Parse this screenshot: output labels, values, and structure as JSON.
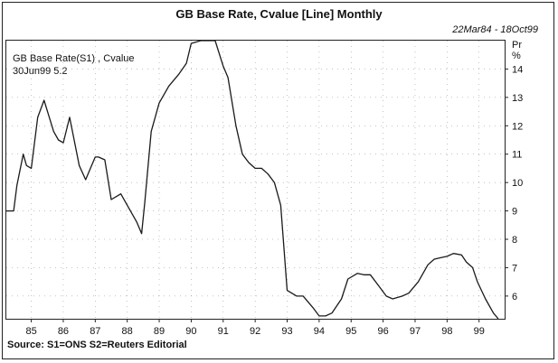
{
  "header": {
    "title": "GB Base Rate, Cvalue [Line] Monthly",
    "date_range": "22Mar84 - 18Oct99"
  },
  "legend": {
    "series_name": "GB Base Rate(S1) , Cvalue",
    "last_value": "30Jun99 5.2"
  },
  "axis": {
    "unit_line1": "Pr",
    "unit_line2": "%"
  },
  "footer": {
    "source": "Source: S1=ONS S2=Reuters Editorial"
  },
  "colors": {
    "line": "#1a1a1a",
    "grid": "#888888"
  },
  "chart_data": {
    "type": "line",
    "title": "GB Base Rate, Cvalue [Line] Monthly",
    "xlabel": "",
    "ylabel": "Pr %",
    "xlim": [
      1984.22,
      1999.8
    ],
    "ylim": [
      5.2,
      15.0
    ],
    "grid": "dotted",
    "x_ticks": [
      {
        "value": 1985,
        "label": "85"
      },
      {
        "value": 1986,
        "label": "86"
      },
      {
        "value": 1987,
        "label": "87"
      },
      {
        "value": 1988,
        "label": "88"
      },
      {
        "value": 1989,
        "label": "89"
      },
      {
        "value": 1990,
        "label": "90"
      },
      {
        "value": 1991,
        "label": "91"
      },
      {
        "value": 1992,
        "label": "92"
      },
      {
        "value": 1993,
        "label": "93"
      },
      {
        "value": 1994,
        "label": "94"
      },
      {
        "value": 1995,
        "label": "95"
      },
      {
        "value": 1996,
        "label": "96"
      },
      {
        "value": 1997,
        "label": "97"
      },
      {
        "value": 1998,
        "label": "98"
      },
      {
        "value": 1999,
        "label": "99"
      }
    ],
    "y_ticks": [
      {
        "value": 6,
        "label": "6"
      },
      {
        "value": 7,
        "label": "7"
      },
      {
        "value": 8,
        "label": "8"
      },
      {
        "value": 9,
        "label": "9"
      },
      {
        "value": 10,
        "label": "10"
      },
      {
        "value": 11,
        "label": "11"
      },
      {
        "value": 12,
        "label": "12"
      },
      {
        "value": 13,
        "label": "13"
      },
      {
        "value": 14,
        "label": "14"
      }
    ],
    "series": [
      {
        "name": "GB Base Rate(S1) , Cvalue",
        "x": [
          1984.22,
          1984.45,
          1984.55,
          1984.75,
          1984.85,
          1985.0,
          1985.2,
          1985.4,
          1985.7,
          1985.85,
          1986.0,
          1986.2,
          1986.5,
          1986.7,
          1986.85,
          1987.0,
          1987.1,
          1987.3,
          1987.5,
          1987.8,
          1988.0,
          1988.3,
          1988.45,
          1988.55,
          1988.75,
          1989.0,
          1989.3,
          1989.6,
          1989.85,
          1990.0,
          1990.3,
          1990.75,
          1991.0,
          1991.15,
          1991.4,
          1991.6,
          1991.8,
          1992.0,
          1992.2,
          1992.4,
          1992.6,
          1992.8,
          1993.0,
          1993.3,
          1993.5,
          1993.8,
          1994.0,
          1994.2,
          1994.4,
          1994.7,
          1994.9,
          1995.2,
          1995.4,
          1995.6,
          1995.9,
          1996.1,
          1996.3,
          1996.6,
          1996.8,
          1997.1,
          1997.4,
          1997.6,
          1997.8,
          1998.0,
          1998.2,
          1998.45,
          1998.6,
          1998.8,
          1998.95,
          1999.2,
          1999.45,
          1999.6
        ],
        "values": [
          9.0,
          9.0,
          9.9,
          11.0,
          10.6,
          10.5,
          12.3,
          12.9,
          11.8,
          11.5,
          11.4,
          12.3,
          10.6,
          10.1,
          10.5,
          10.9,
          10.9,
          10.8,
          9.4,
          9.6,
          9.2,
          8.6,
          8.2,
          9.3,
          11.8,
          12.8,
          13.4,
          13.8,
          14.2,
          14.9,
          15.0,
          15.0,
          14.1,
          13.7,
          12.0,
          11.0,
          10.7,
          10.5,
          10.5,
          10.3,
          10.0,
          9.2,
          6.2,
          6.0,
          6.0,
          5.6,
          5.3,
          5.3,
          5.4,
          5.9,
          6.6,
          6.8,
          6.75,
          6.75,
          6.3,
          6.0,
          5.9,
          6.0,
          6.1,
          6.5,
          7.1,
          7.3,
          7.35,
          7.4,
          7.5,
          7.45,
          7.2,
          7.0,
          6.5,
          5.9,
          5.4,
          5.2
        ]
      }
    ]
  }
}
